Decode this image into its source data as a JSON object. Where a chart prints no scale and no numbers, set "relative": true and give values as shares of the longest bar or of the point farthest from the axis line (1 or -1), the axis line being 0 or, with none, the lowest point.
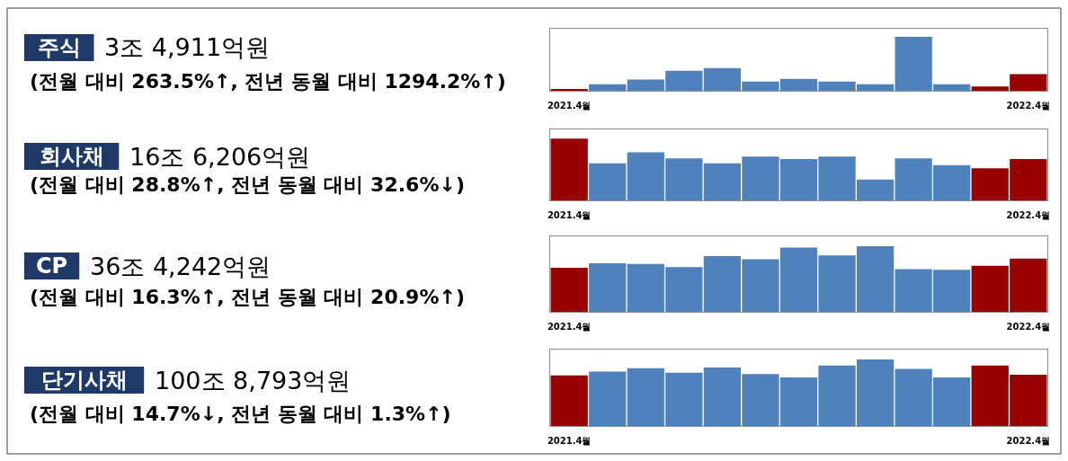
{
  "chart_data": [
    {
      "type": "bar",
      "relative": true,
      "annotations": [
        "주식",
        "3조 4,911억원",
        "(전월 대비 263.5%↑, 전년 동월 대비 1294.2%↑)"
      ],
      "categories": [
        "2021.4월",
        null,
        null,
        null,
        null,
        null,
        null,
        null,
        null,
        null,
        null,
        null,
        "2022.4월"
      ],
      "values": [
        0.02,
        0.12,
        0.21,
        0.37,
        0.42,
        0.17,
        0.22,
        0.17,
        0.12,
        1,
        0.12,
        0.08,
        0.31
      ],
      "colors": [
        "#990000",
        "#4f81bd",
        "#4f81bd",
        "#4f81bd",
        "#4f81bd",
        "#4f81bd",
        "#4f81bd",
        "#4f81bd",
        "#4f81bd",
        "#4f81bd",
        "#4f81bd",
        "#990000",
        "#990000"
      ]
    },
    {
      "type": "bar",
      "relative": true,
      "annotations": [
        "회사채",
        "16조 6,206억원",
        "(전월 대비 28.8%↑, 전년 동월 대비 32.6%↓)"
      ],
      "categories": [
        "2021.4월",
        null,
        null,
        null,
        null,
        null,
        null,
        null,
        null,
        null,
        null,
        null,
        "2022.4월"
      ],
      "values": [
        1,
        0.6,
        0.78,
        0.68,
        0.6,
        0.71,
        0.67,
        0.71,
        0.34,
        0.68,
        0.57,
        0.52,
        0.67
      ],
      "colors": [
        "#990000",
        "#4f81bd",
        "#4f81bd",
        "#4f81bd",
        "#4f81bd",
        "#4f81bd",
        "#4f81bd",
        "#4f81bd",
        "#4f81bd",
        "#4f81bd",
        "#4f81bd",
        "#990000",
        "#990000"
      ]
    },
    {
      "type": "bar",
      "relative": true,
      "annotations": [
        "CP",
        "36조 4,242억원",
        "(전월 대비 16.3%↑, 전년 동월 대비 20.9%↑)"
      ],
      "categories": [
        "2021.4월",
        null,
        null,
        null,
        null,
        null,
        null,
        null,
        null,
        null,
        null,
        null,
        "2022.4월"
      ],
      "values": [
        0.67,
        0.74,
        0.73,
        0.68,
        0.85,
        0.8,
        0.98,
        0.86,
        1,
        0.65,
        0.64,
        0.7,
        0.81
      ],
      "colors": [
        "#990000",
        "#4f81bd",
        "#4f81bd",
        "#4f81bd",
        "#4f81bd",
        "#4f81bd",
        "#4f81bd",
        "#4f81bd",
        "#4f81bd",
        "#4f81bd",
        "#4f81bd",
        "#990000",
        "#990000"
      ]
    },
    {
      "type": "bar",
      "relative": true,
      "annotations": [
        "단기사채",
        "100조 8,793억원",
        "(전월 대비 14.7%↓, 전년 동월 대비 1.3%↑)"
      ],
      "categories": [
        "2021.4월",
        null,
        null,
        null,
        null,
        null,
        null,
        null,
        null,
        null,
        null,
        null,
        "2022.4월"
      ],
      "values": [
        0.76,
        0.82,
        0.87,
        0.8,
        0.88,
        0.78,
        0.73,
        0.91,
        1,
        0.86,
        0.73,
        0.91,
        0.77
      ],
      "colors": [
        "#990000",
        "#4f81bd",
        "#4f81bd",
        "#4f81bd",
        "#4f81bd",
        "#4f81bd",
        "#4f81bd",
        "#4f81bd",
        "#4f81bd",
        "#4f81bd",
        "#4f81bd",
        "#990000",
        "#990000"
      ]
    }
  ]
}
